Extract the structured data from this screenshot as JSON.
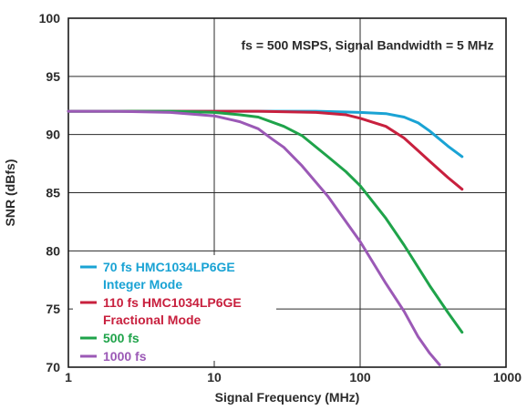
{
  "chart_data": {
    "type": "line",
    "title": "",
    "annotation": "fs = 500 MSPS, Signal Bandwidth = 5 MHz",
    "xlabel": "Signal Frequency (MHz)",
    "ylabel": "SNR (dBfs)",
    "xscale": "log",
    "xlim": [
      1,
      1000
    ],
    "ylim": [
      70,
      100
    ],
    "xticks": [
      1,
      10,
      100,
      1000
    ],
    "xtick_labels": [
      "1",
      "10",
      "100",
      "1000"
    ],
    "yticks": [
      70,
      75,
      80,
      85,
      90,
      95,
      100
    ],
    "ytick_labels": [
      "70",
      "75",
      "80",
      "85",
      "90",
      "95",
      "100"
    ],
    "grid": true,
    "legend_position": "bottom-left",
    "series": [
      {
        "name": "70 fs HMC1034LP6GE",
        "name_line2": "Integer Mode",
        "color": "#1aa3d4",
        "x": [
          1,
          2,
          5,
          10,
          20,
          50,
          100,
          150,
          200,
          250,
          300,
          400,
          500
        ],
        "y": [
          92,
          92,
          92,
          92,
          92,
          92,
          91.9,
          91.8,
          91.5,
          91.0,
          90.3,
          89.0,
          88.1
        ]
      },
      {
        "name": "110 fs HMC1034LP6GE",
        "name_line2": "Fractional Mode",
        "color": "#c8203e",
        "x": [
          1,
          2,
          5,
          10,
          20,
          50,
          80,
          100,
          150,
          200,
          250,
          300,
          400,
          500
        ],
        "y": [
          92,
          92,
          92,
          92,
          92,
          91.9,
          91.7,
          91.4,
          90.7,
          89.7,
          88.6,
          87.7,
          86.3,
          85.3
        ]
      },
      {
        "name": "500 fs",
        "color": "#1fa34a",
        "x": [
          1,
          2,
          5,
          10,
          15,
          20,
          30,
          40,
          60,
          80,
          100,
          150,
          200,
          300,
          400,
          500
        ],
        "y": [
          92,
          92,
          92,
          91.9,
          91.7,
          91.5,
          90.7,
          89.9,
          88.1,
          86.8,
          85.6,
          82.8,
          80.5,
          77.0,
          74.7,
          73.0
        ]
      },
      {
        "name": "1000 fs",
        "color": "#9b59b6",
        "x": [
          1,
          2,
          5,
          10,
          15,
          20,
          25,
          30,
          40,
          60,
          80,
          100,
          150,
          200,
          250,
          300,
          350
        ],
        "y": [
          92,
          92,
          91.9,
          91.6,
          91.1,
          90.5,
          89.6,
          88.9,
          87.3,
          84.7,
          82.5,
          80.8,
          77.2,
          74.8,
          72.6,
          71.2,
          70.2
        ]
      }
    ]
  }
}
